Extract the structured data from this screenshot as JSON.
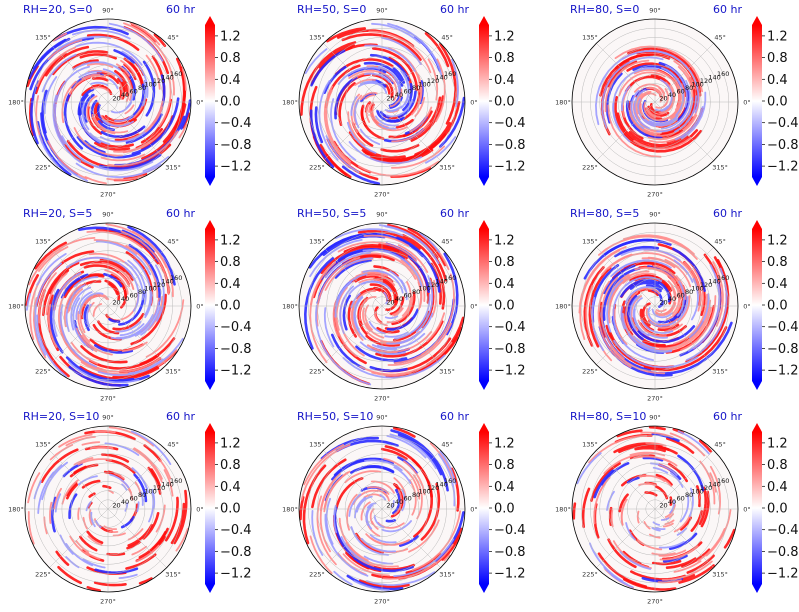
{
  "figure": {
    "time_label": "60 hr"
  },
  "chart_data": {
    "type": "heatmap",
    "projection": "polar",
    "rows": 3,
    "cols": 3,
    "panels": [
      {
        "title": "RH=20, S=0",
        "time": "60 hr",
        "rh": 20,
        "s": 0
      },
      {
        "title": "RH=50, S=0",
        "time": "60 hr",
        "rh": 50,
        "s": 0
      },
      {
        "title": "RH=80, S=0",
        "time": "60 hr",
        "rh": 80,
        "s": 0
      },
      {
        "title": "RH=20, S=5",
        "time": "60 hr",
        "rh": 20,
        "s": 5
      },
      {
        "title": "RH=50, S=5",
        "time": "60 hr",
        "rh": 50,
        "s": 5
      },
      {
        "title": "RH=80, S=5",
        "time": "60 hr",
        "rh": 80,
        "s": 5
      },
      {
        "title": "RH=20, S=10",
        "time": "60 hr",
        "rh": 20,
        "s": 10
      },
      {
        "title": "RH=50, S=10",
        "time": "60 hr",
        "rh": 50,
        "s": 10
      },
      {
        "title": "RH=80, S=10",
        "time": "60 hr",
        "rh": 80,
        "s": 10
      }
    ],
    "radial_ticks": [
      "20",
      "40",
      "60",
      "80",
      "100",
      "120",
      "140",
      "160"
    ],
    "radial_range": [
      0,
      180
    ],
    "angle_ticks": [
      "0°",
      "45°",
      "90°",
      "135°",
      "180°",
      "225°",
      "270°",
      "315°"
    ],
    "colorbar": {
      "ticks": [
        "1.2",
        "0.8",
        "0.4",
        "0.0",
        "−0.4",
        "−0.8",
        "−1.2"
      ],
      "range": [
        -1.4,
        1.4
      ],
      "colormap": "bwr",
      "extend": "both",
      "colors": {
        "max": "#ff0000",
        "mid": "#ffffff",
        "min": "#0000ff"
      }
    }
  }
}
